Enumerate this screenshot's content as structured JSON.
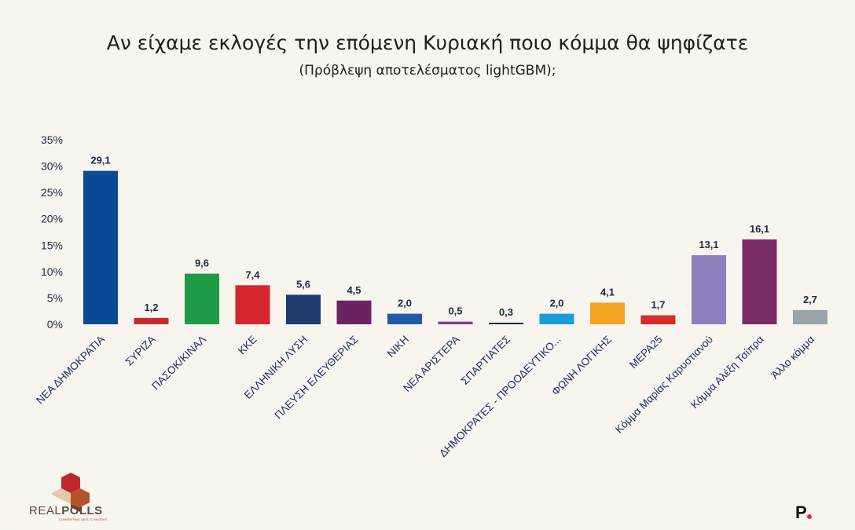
{
  "chart_data": {
    "type": "bar",
    "title": "Αν είχαμε εκλογές την επόμενη Κυριακή ποιο κόμμα θα ψηφίζατε",
    "subtitle": "(Πρόβλεψη αποτελέσματος lightGBM);",
    "ylim": [
      0,
      35
    ],
    "yticks": [
      "0%",
      "5%",
      "10%",
      "15%",
      "20%",
      "25%",
      "30%",
      "35%"
    ],
    "grid": false,
    "categories": [
      "ΝΕΑ ΔΗΜΟΚΡΑΤΙΑ",
      "ΣΥΡΙΖΑ",
      "ΠΑΣΟΚ/ΚΙΝΑΛ",
      "ΚΚΕ",
      "ΕΛΛΗΝΙΚΗ ΛΥΣΗ",
      "ΠΛΕΥΣΗ ΕΛΕΥΘΕΡΙΑΣ",
      "ΝΙΚΗ",
      "ΝΕΑ ΑΡΙΣΤΕΡΑ",
      "ΣΠΑΡΤΙΑΤΕΣ",
      "ΔΗΜΟΚΡΑΤΕΣ - ΠΡΟΟΔΕΥΤΙΚΟ...",
      "ΦΩΝΗ ΛΟΓΙΚΗΣ",
      "ΜΕΡΑ25",
      "Κόμμα Μαρίας Καρυστιανού",
      "Κόμμα Αλέξη Τσίπρα",
      "Άλλο κόμμα"
    ],
    "values": [
      29.1,
      1.2,
      9.6,
      7.4,
      5.6,
      4.5,
      2.0,
      0.5,
      0.3,
      2.0,
      4.1,
      1.7,
      13.1,
      16.1,
      2.7
    ],
    "value_labels": [
      "29,1",
      "1,2",
      "9,6",
      "7,4",
      "5,6",
      "4,5",
      "2,0",
      "0,5",
      "0,3",
      "2,0",
      "4,1",
      "1,7",
      "13,1",
      "16,1",
      "2,7"
    ],
    "colors": [
      "#0a4a97",
      "#c42b37",
      "#1f9a47",
      "#d6262d",
      "#1c3a6b",
      "#6b2260",
      "#1f5ba8",
      "#7e3a9a",
      "#1c2a3a",
      "#1a9edb",
      "#f2a423",
      "#d92b2b",
      "#8f7fbd",
      "#7a2d65",
      "#9aa2aa"
    ]
  },
  "logos": {
    "left_word_1": "REAL",
    "left_word_2": "POLLS",
    "left_tagline": "CONVERTING DATA TO INSIGHT",
    "right_mark": "P"
  }
}
